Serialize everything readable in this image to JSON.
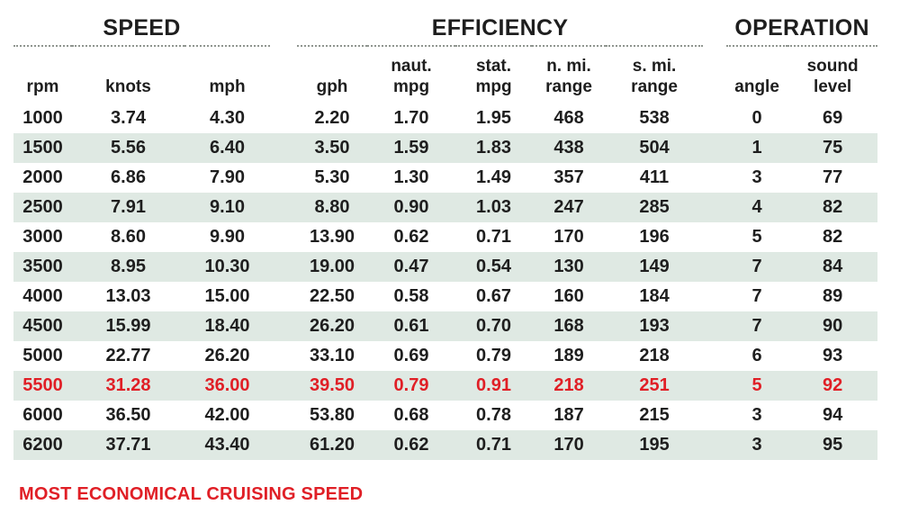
{
  "colors": {
    "text": "#1e1e1e",
    "highlight_red": "#e01f26",
    "row_stripe": "#dfe9e3",
    "rule_gray": "#909690",
    "background": "#ffffff"
  },
  "chart_data": {
    "type": "table",
    "groups": [
      {
        "label": "SPEED",
        "span": 3
      },
      {
        "label": "EFFICIENCY",
        "span": 5
      },
      {
        "label": "OPERATION",
        "span": 2
      }
    ],
    "columns": [
      {
        "line1": "",
        "line2": "rpm"
      },
      {
        "line1": "",
        "line2": "knots"
      },
      {
        "line1": "",
        "line2": "mph"
      },
      {
        "line1": "",
        "line2": "gph"
      },
      {
        "line1": "naut.",
        "line2": "mpg"
      },
      {
        "line1": "stat.",
        "line2": "mpg"
      },
      {
        "line1": "n. mi.",
        "line2": "range"
      },
      {
        "line1": "s. mi.",
        "line2": "range"
      },
      {
        "line1": "",
        "line2": "angle"
      },
      {
        "line1": "sound",
        "line2": "level"
      }
    ],
    "rows": [
      {
        "values": [
          "1000",
          "3.74",
          "4.30",
          "2.20",
          "1.70",
          "1.95",
          "468",
          "538",
          "0",
          "69"
        ],
        "striped": false,
        "highlight": false
      },
      {
        "values": [
          "1500",
          "5.56",
          "6.40",
          "3.50",
          "1.59",
          "1.83",
          "438",
          "504",
          "1",
          "75"
        ],
        "striped": true,
        "highlight": false
      },
      {
        "values": [
          "2000",
          "6.86",
          "7.90",
          "5.30",
          "1.30",
          "1.49",
          "357",
          "411",
          "3",
          "77"
        ],
        "striped": false,
        "highlight": false
      },
      {
        "values": [
          "2500",
          "7.91",
          "9.10",
          "8.80",
          "0.90",
          "1.03",
          "247",
          "285",
          "4",
          "82"
        ],
        "striped": true,
        "highlight": false
      },
      {
        "values": [
          "3000",
          "8.60",
          "9.90",
          "13.90",
          "0.62",
          "0.71",
          "170",
          "196",
          "5",
          "82"
        ],
        "striped": false,
        "highlight": false
      },
      {
        "values": [
          "3500",
          "8.95",
          "10.30",
          "19.00",
          "0.47",
          "0.54",
          "130",
          "149",
          "7",
          "84"
        ],
        "striped": true,
        "highlight": false
      },
      {
        "values": [
          "4000",
          "13.03",
          "15.00",
          "22.50",
          "0.58",
          "0.67",
          "160",
          "184",
          "7",
          "89"
        ],
        "striped": false,
        "highlight": false
      },
      {
        "values": [
          "4500",
          "15.99",
          "18.40",
          "26.20",
          "0.61",
          "0.70",
          "168",
          "193",
          "7",
          "90"
        ],
        "striped": true,
        "highlight": false
      },
      {
        "values": [
          "5000",
          "22.77",
          "26.20",
          "33.10",
          "0.69",
          "0.79",
          "189",
          "218",
          "6",
          "93"
        ],
        "striped": false,
        "highlight": false
      },
      {
        "values": [
          "5500",
          "31.28",
          "36.00",
          "39.50",
          "0.79",
          "0.91",
          "218",
          "251",
          "5",
          "92"
        ],
        "striped": true,
        "highlight": true
      },
      {
        "values": [
          "6000",
          "36.50",
          "42.00",
          "53.80",
          "0.68",
          "0.78",
          "187",
          "215",
          "3",
          "94"
        ],
        "striped": false,
        "highlight": false
      },
      {
        "values": [
          "6200",
          "37.71",
          "43.40",
          "61.20",
          "0.62",
          "0.71",
          "170",
          "195",
          "3",
          "95"
        ],
        "striped": true,
        "highlight": false
      }
    ],
    "footnote": "MOST ECONOMICAL CRUISING SPEED",
    "legend_note": "highlighted red row = most economical cruising speed"
  }
}
